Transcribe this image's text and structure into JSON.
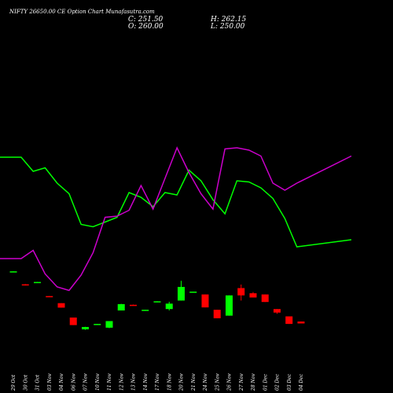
{
  "header": {
    "title": "NIFTY 26650.00 CE Option Chart Munafasutra.com"
  },
  "ohlc": {
    "close_label": "C: 251.50",
    "open_label": "O: 260.00",
    "high_label": "H: 262.15",
    "low_label": "L: 250.00"
  },
  "colors": {
    "background": "#000000",
    "up": "#00ff00",
    "down": "#ff0000",
    "upper_band": "#00ff00",
    "lower_band": "#cc00cc",
    "text": "#ffffff"
  },
  "chart_data": {
    "type": "candlestick",
    "title": "NIFTY 26650.00 CE Option Chart Munafasutra.com",
    "xlabel": "",
    "ylabel": "",
    "dates": [
      "29 Oct",
      "30 Oct",
      "31 Oct",
      "03 Nov",
      "04 Nov",
      "06 Nov",
      "07 Nov",
      "10 Nov",
      "11 Nov",
      "12 Nov",
      "13 Nov",
      "14 Nov",
      "17 Nov",
      "18 Nov",
      "20 Nov",
      "21 Nov",
      "24 Nov",
      "25 Nov",
      "26 Nov",
      "27 Nov",
      "28 Nov",
      "01 Dec",
      "02 Dec",
      "03 Dec",
      "04 Dec"
    ],
    "candles": [
      {
        "open": 515,
        "close": 516,
        "high": 516,
        "low": 515
      },
      {
        "open": 461,
        "close": 457,
        "high": 462,
        "low": 456
      },
      {
        "open": 470,
        "close": 471,
        "high": 471,
        "low": 470
      },
      {
        "open": 411,
        "close": 410,
        "high": 411,
        "low": 410
      },
      {
        "open": 381,
        "close": 362,
        "high": 381,
        "low": 362
      },
      {
        "open": 320,
        "close": 288,
        "high": 320,
        "low": 288
      },
      {
        "open": 270,
        "close": 280,
        "high": 281,
        "low": 268
      },
      {
        "open": 290,
        "close": 293,
        "high": 293,
        "low": 290
      },
      {
        "open": 277,
        "close": 305,
        "high": 305,
        "low": 275
      },
      {
        "open": 350,
        "close": 377,
        "high": 378,
        "low": 350
      },
      {
        "open": 374,
        "close": 371,
        "high": 375,
        "low": 370
      },
      {
        "open": 349,
        "close": 353,
        "high": 353,
        "low": 349
      },
      {
        "open": 387,
        "close": 389,
        "high": 389,
        "low": 387
      },
      {
        "open": 356,
        "close": 379,
        "high": 387,
        "low": 350
      },
      {
        "open": 392,
        "close": 450,
        "high": 476,
        "low": 392
      },
      {
        "open": 429,
        "close": 430,
        "high": 430,
        "low": 429
      },
      {
        "open": 418,
        "close": 363,
        "high": 418,
        "low": 363
      },
      {
        "open": 353,
        "close": 317,
        "high": 353,
        "low": 317
      },
      {
        "open": 328,
        "close": 414,
        "high": 414,
        "low": 328
      },
      {
        "open": 445,
        "close": 414,
        "high": 460,
        "low": 392
      },
      {
        "open": 423,
        "close": 405,
        "high": 428,
        "low": 405
      },
      {
        "open": 418,
        "close": 386,
        "high": 418,
        "low": 386
      },
      {
        "open": 356,
        "close": 341,
        "high": 356,
        "low": 336
      },
      {
        "open": 325,
        "close": 293,
        "high": 325,
        "low": 293
      },
      {
        "open": 303,
        "close": 295,
        "high": 303,
        "low": 295
      }
    ],
    "upper_band": [
      1000,
      1000,
      940,
      955,
      890,
      845,
      715,
      705,
      725,
      745,
      850,
      830,
      790,
      850,
      840,
      945,
      900,
      820,
      760,
      900,
      895,
      870,
      825,
      740,
      620,
      650
    ],
    "lower_band": [
      570,
      570,
      605,
      505,
      450,
      435,
      500,
      595,
      745,
      750,
      775,
      880,
      780,
      910,
      1040,
      935,
      845,
      780,
      1035,
      1040,
      1030,
      1005,
      890,
      860,
      890,
      1005
    ],
    "ylim": [
      0,
      1400
    ],
    "grid": false,
    "legend": "none"
  }
}
